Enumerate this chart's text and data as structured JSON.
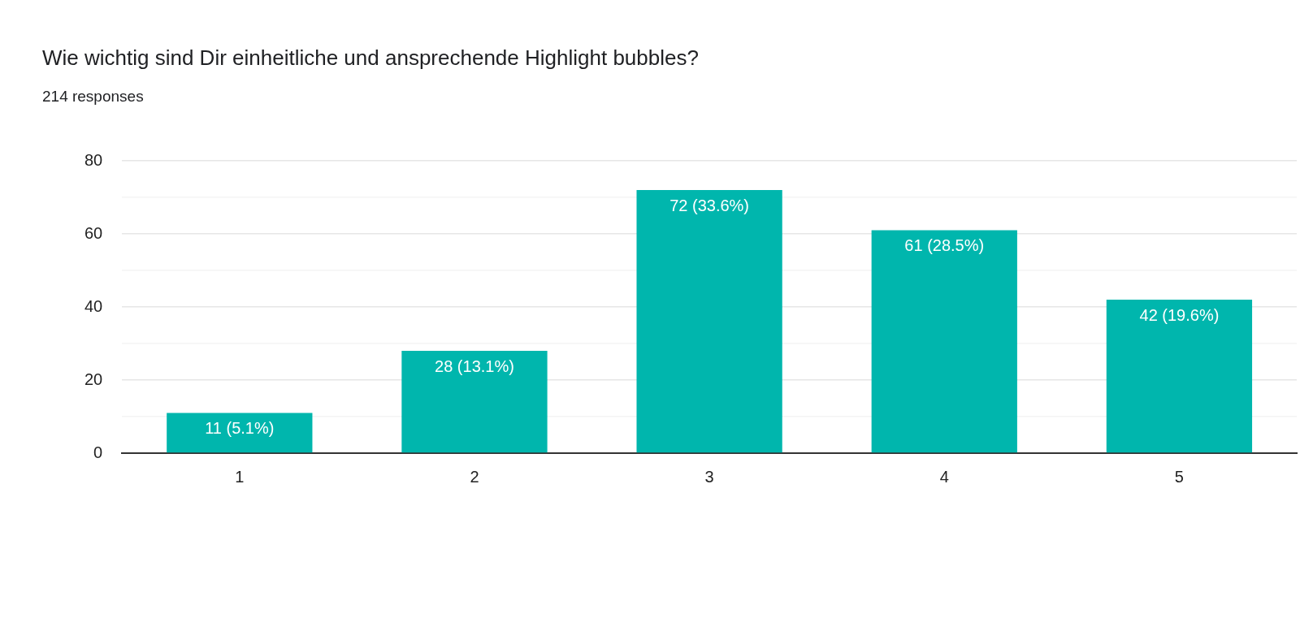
{
  "chart_data": {
    "type": "bar",
    "title": "Wie wichtig sind Dir einheitliche und ansprechende Highlight bubbles?",
    "subtitle": "214 responses",
    "categories": [
      "1",
      "2",
      "3",
      "4",
      "5"
    ],
    "values": [
      11,
      28,
      72,
      61,
      42
    ],
    "value_labels": [
      "11 (5.1%)",
      "28 (13.1%)",
      "72 (33.6%)",
      "61 (28.5%)",
      "42 (19.6%)"
    ],
    "color": "#00b6ad",
    "ylim": [
      0,
      80
    ],
    "yticks": [
      0,
      {
        "value": 10,
        "label": null
      },
      20,
      {
        "value": 30,
        "label": null
      },
      40,
      {
        "value": 50,
        "label": null
      },
      60,
      {
        "value": 70,
        "label": null
      },
      80
    ],
    "grid": true
  }
}
